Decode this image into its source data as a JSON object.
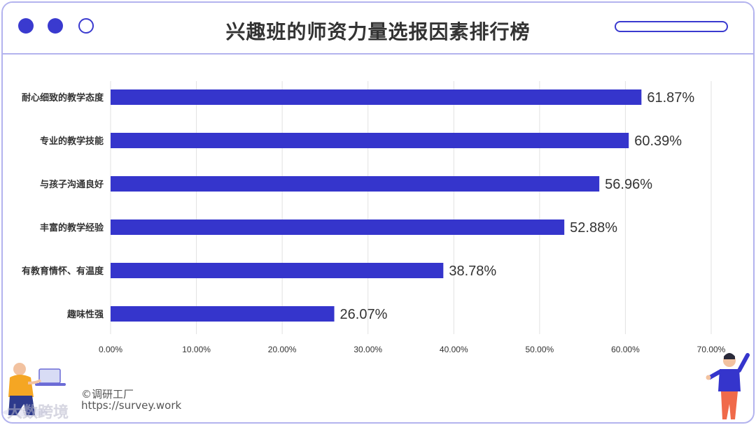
{
  "window": {
    "title": "兴趣班的师资力量选报因素排行榜"
  },
  "colors": {
    "bar": "#3535cc",
    "accent": "#3a3acf",
    "frame": "#b3b3ee",
    "grid": "#e2e2e2"
  },
  "chart_data": {
    "type": "bar",
    "orientation": "horizontal",
    "title": "兴趣班的师资力量选报因素排行榜",
    "categories": [
      "耐心细致的教学态度",
      "专业的教学技能",
      "与孩子沟通良好",
      "丰富的教学经验",
      "有教育情怀、有温度",
      "趣味性强"
    ],
    "values": [
      61.87,
      60.39,
      56.96,
      52.88,
      38.78,
      26.07
    ],
    "value_labels": [
      "61.87%",
      "60.39%",
      "56.96%",
      "52.88%",
      "38.78%",
      "26.07%"
    ],
    "xlim": [
      0,
      70
    ],
    "xticks": [
      "0.00%",
      "10.00%",
      "20.00%",
      "30.00%",
      "40.00%",
      "50.00%",
      "60.00%",
      "70.00%"
    ],
    "grid": true,
    "xlabel": "",
    "ylabel": ""
  },
  "footer": {
    "copyright": "©调研工厂",
    "url": "https://survey.work",
    "brand": "大数跨境"
  }
}
